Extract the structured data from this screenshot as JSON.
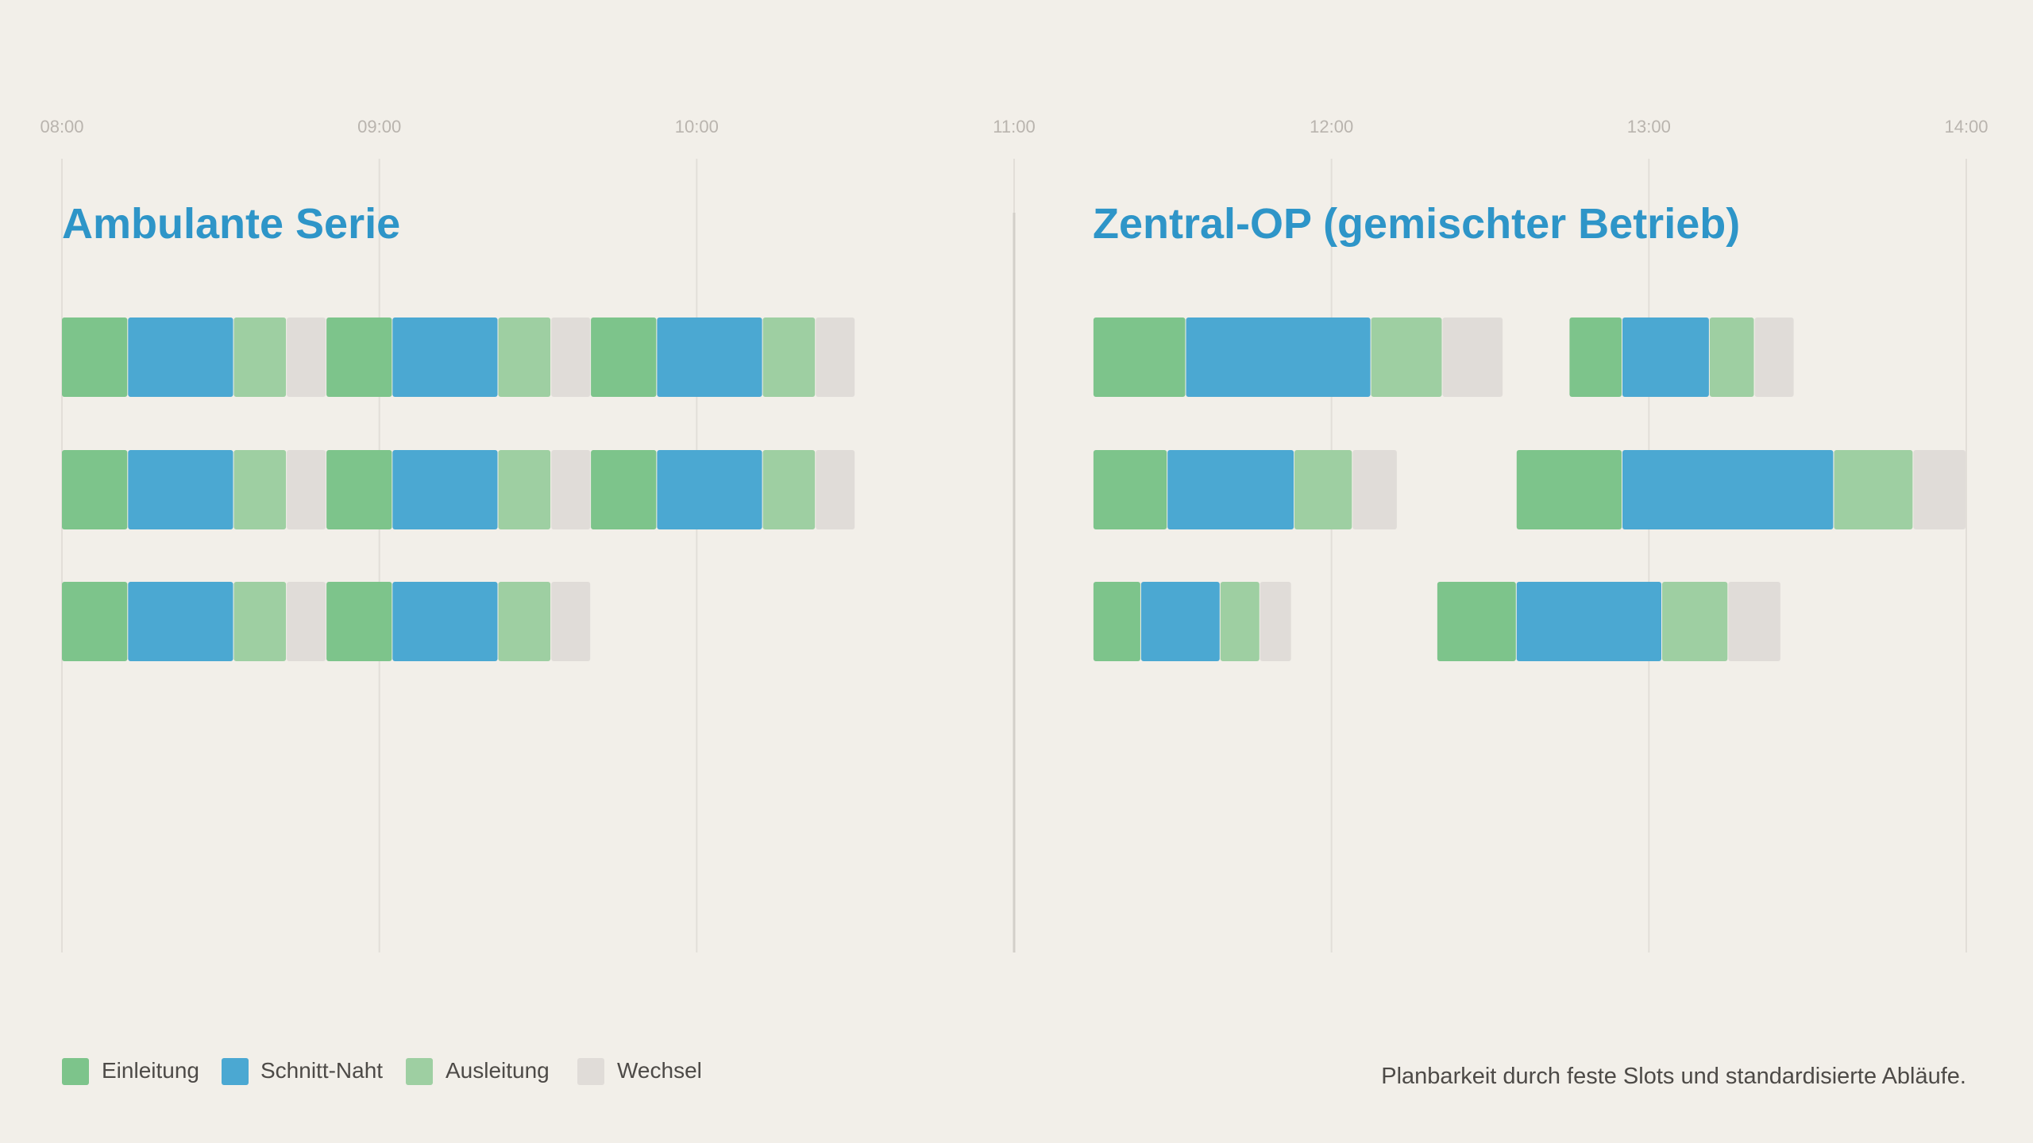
{
  "chart_data": {
    "type": "gantt",
    "time_axis": {
      "ticks": [
        "08:00",
        "09:00",
        "10:00",
        "11:00",
        "12:00",
        "13:00",
        "14:00"
      ],
      "range": [
        "08:00",
        "14:00"
      ]
    },
    "legend": [
      {
        "key": "einleitung",
        "label": "Einleitung",
        "color": "#7dc48b"
      },
      {
        "key": "schnitt_naht",
        "label": "Schnitt-Naht",
        "color": "#4ba8d2"
      },
      {
        "key": "ausleitung",
        "label": "Ausleitung",
        "color": "#9ecfa2"
      },
      {
        "key": "wechsel",
        "label": "Wechsel",
        "color": "#e0dcd8"
      }
    ],
    "caption": "Planbarkeit durch feste Slots und standardisierte Abläufe.",
    "panels": [
      {
        "title": "Ambulante Serie",
        "rows": [
          [
            {
              "phase": "einleitung",
              "start": "08:00",
              "end": "08:12.5"
            },
            {
              "phase": "schnitt_naht",
              "start": "08:12.5",
              "end": "08:32.5"
            },
            {
              "phase": "ausleitung",
              "start": "08:32.5",
              "end": "08:42.5"
            },
            {
              "phase": "wechsel",
              "start": "08:42.5",
              "end": "08:50"
            },
            {
              "phase": "einleitung",
              "start": "08:50",
              "end": "09:02.5"
            },
            {
              "phase": "schnitt_naht",
              "start": "09:02.5",
              "end": "09:22.5"
            },
            {
              "phase": "ausleitung",
              "start": "09:22.5",
              "end": "09:32.5"
            },
            {
              "phase": "wechsel",
              "start": "09:32.5",
              "end": "09:40"
            },
            {
              "phase": "einleitung",
              "start": "09:40",
              "end": "09:52.5"
            },
            {
              "phase": "schnitt_naht",
              "start": "09:52.5",
              "end": "10:12.5"
            },
            {
              "phase": "ausleitung",
              "start": "10:12.5",
              "end": "10:22.5"
            },
            {
              "phase": "wechsel",
              "start": "10:22.5",
              "end": "10:30"
            }
          ],
          [
            {
              "phase": "einleitung",
              "start": "08:00",
              "end": "08:12.5"
            },
            {
              "phase": "schnitt_naht",
              "start": "08:12.5",
              "end": "08:32.5"
            },
            {
              "phase": "ausleitung",
              "start": "08:32.5",
              "end": "08:42.5"
            },
            {
              "phase": "wechsel",
              "start": "08:42.5",
              "end": "08:50"
            },
            {
              "phase": "einleitung",
              "start": "08:50",
              "end": "09:02.5"
            },
            {
              "phase": "schnitt_naht",
              "start": "09:02.5",
              "end": "09:22.5"
            },
            {
              "phase": "ausleitung",
              "start": "09:22.5",
              "end": "09:32.5"
            },
            {
              "phase": "wechsel",
              "start": "09:32.5",
              "end": "09:40"
            },
            {
              "phase": "einleitung",
              "start": "09:40",
              "end": "09:52.5"
            },
            {
              "phase": "schnitt_naht",
              "start": "09:52.5",
              "end": "10:12.5"
            },
            {
              "phase": "ausleitung",
              "start": "10:12.5",
              "end": "10:22.5"
            },
            {
              "phase": "wechsel",
              "start": "10:22.5",
              "end": "10:30"
            }
          ],
          [
            {
              "phase": "einleitung",
              "start": "08:00",
              "end": "08:12.5"
            },
            {
              "phase": "schnitt_naht",
              "start": "08:12.5",
              "end": "08:32.5"
            },
            {
              "phase": "ausleitung",
              "start": "08:32.5",
              "end": "08:42.5"
            },
            {
              "phase": "wechsel",
              "start": "08:42.5",
              "end": "08:50"
            },
            {
              "phase": "einleitung",
              "start": "08:50",
              "end": "09:02.5"
            },
            {
              "phase": "schnitt_naht",
              "start": "09:02.5",
              "end": "09:22.5"
            },
            {
              "phase": "ausleitung",
              "start": "09:22.5",
              "end": "09:32.5"
            },
            {
              "phase": "wechsel",
              "start": "09:32.5",
              "end": "09:40"
            }
          ]
        ]
      },
      {
        "title": "Zentral-OP (gemischter Betrieb)",
        "rows": [
          [
            {
              "phase": "einleitung",
              "start": "11:15",
              "end": "11:32.5"
            },
            {
              "phase": "schnitt_naht",
              "start": "11:32.5",
              "end": "12:07.5"
            },
            {
              "phase": "ausleitung",
              "start": "12:07.5",
              "end": "12:21"
            },
            {
              "phase": "wechsel",
              "start": "12:21",
              "end": "12:32.5"
            },
            {
              "phase": "einleitung",
              "start": "12:45",
              "end": "12:55"
            },
            {
              "phase": "schnitt_naht",
              "start": "12:55",
              "end": "13:11.5"
            },
            {
              "phase": "ausleitung",
              "start": "13:11.5",
              "end": "13:20"
            },
            {
              "phase": "wechsel",
              "start": "13:20",
              "end": "13:27.5"
            }
          ],
          [
            {
              "phase": "einleitung",
              "start": "11:15",
              "end": "11:29"
            },
            {
              "phase": "schnitt_naht",
              "start": "11:29",
              "end": "11:53"
            },
            {
              "phase": "ausleitung",
              "start": "11:53",
              "end": "12:04"
            },
            {
              "phase": "wechsel",
              "start": "12:04",
              "end": "12:12.5"
            },
            {
              "phase": "einleitung",
              "start": "12:35",
              "end": "12:55"
            },
            {
              "phase": "schnitt_naht",
              "start": "12:55",
              "end": "13:35"
            },
            {
              "phase": "ausleitung",
              "start": "13:35",
              "end": "13:50"
            },
            {
              "phase": "wechsel",
              "start": "13:50",
              "end": "14:00"
            }
          ],
          [
            {
              "phase": "einleitung",
              "start": "11:15",
              "end": "11:24"
            },
            {
              "phase": "schnitt_naht",
              "start": "11:24",
              "end": "11:39"
            },
            {
              "phase": "ausleitung",
              "start": "11:39",
              "end": "11:46.5"
            },
            {
              "phase": "wechsel",
              "start": "11:46.5",
              "end": "11:52.5"
            },
            {
              "phase": "einleitung",
              "start": "12:20",
              "end": "12:35"
            },
            {
              "phase": "schnitt_naht",
              "start": "12:35",
              "end": "13:02.5"
            },
            {
              "phase": "ausleitung",
              "start": "13:02.5",
              "end": "13:15"
            },
            {
              "phase": "wechsel",
              "start": "13:15",
              "end": "13:25"
            }
          ]
        ]
      }
    ]
  }
}
